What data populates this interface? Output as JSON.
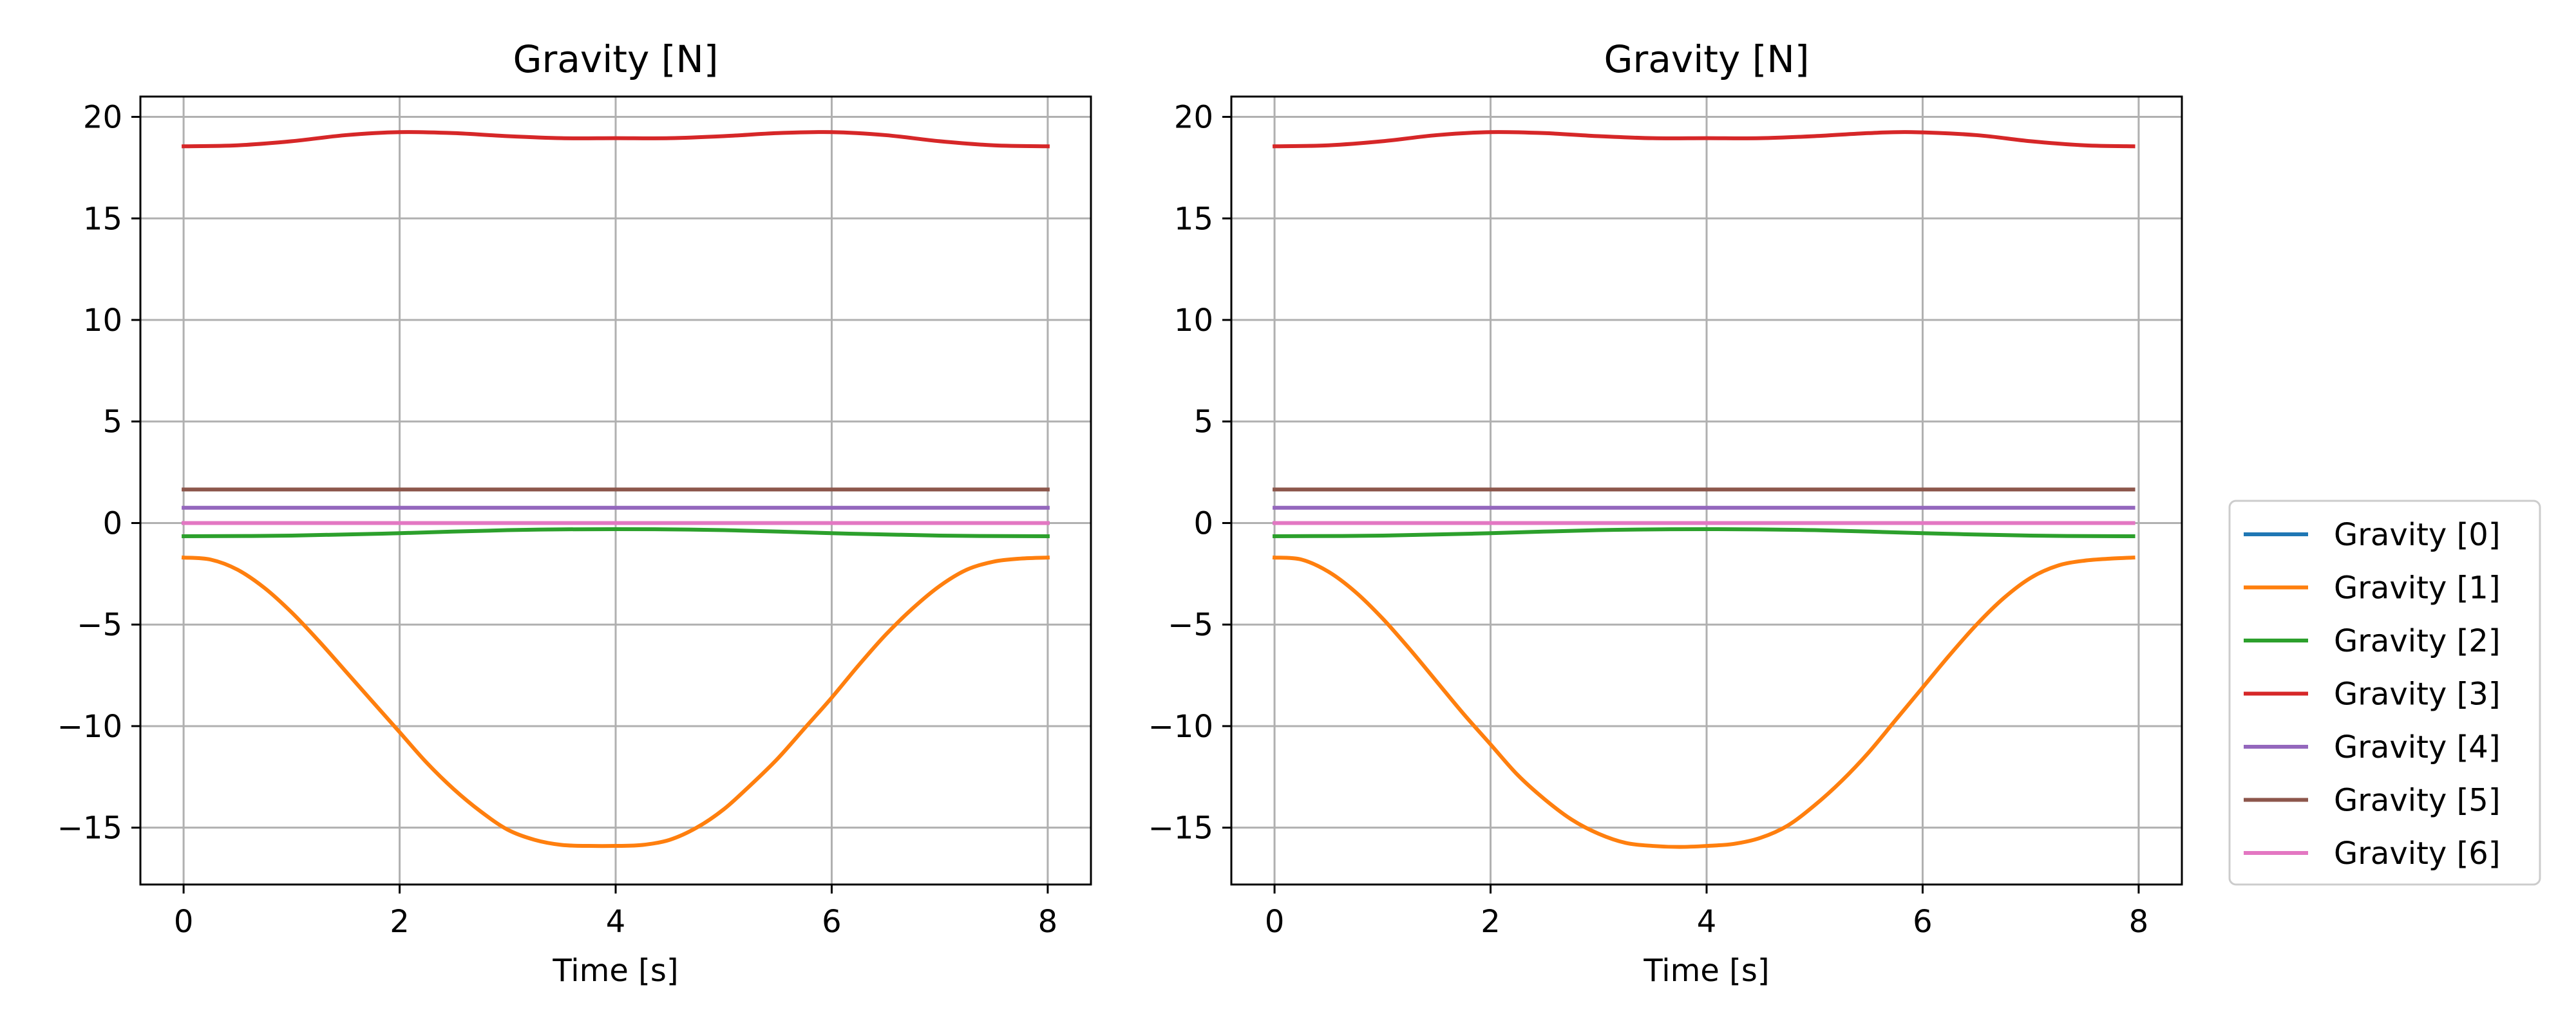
{
  "chart_data": [
    {
      "type": "line",
      "title": "Gravity [N]",
      "xlabel": "Time [s]",
      "ylabel": "",
      "xlim": [
        -0.4,
        8.4
      ],
      "ylim": [
        -17.8,
        21.0
      ],
      "xticks": [
        0,
        2,
        4,
        6,
        8
      ],
      "yticks": [
        -15,
        -10,
        -5,
        0,
        5,
        10,
        15,
        20
      ],
      "xtick_labels": [
        "0",
        "2",
        "4",
        "6",
        "8"
      ],
      "ytick_labels": [
        "−15",
        "−10",
        "−5",
        "0",
        "5",
        "10",
        "15",
        "20"
      ],
      "grid": true,
      "series": [
        {
          "name": "Gravity [0]",
          "color": "#1f77b4",
          "x": [
            0,
            8
          ],
          "y": [
            0.0,
            0.0
          ]
        },
        {
          "name": "Gravity [1]",
          "color": "#ff7f0e",
          "x": [
            0,
            0.25,
            0.5,
            0.75,
            1,
            1.25,
            1.5,
            1.75,
            2,
            2.25,
            2.5,
            2.75,
            3,
            3.25,
            3.5,
            3.75,
            4,
            4.25,
            4.5,
            4.75,
            5,
            5.25,
            5.5,
            5.75,
            6,
            6.25,
            6.5,
            6.75,
            7,
            7.25,
            7.5,
            7.75,
            8
          ],
          "y": [
            -1.7,
            -1.8,
            -2.3,
            -3.2,
            -4.4,
            -5.8,
            -7.3,
            -8.8,
            -10.3,
            -11.8,
            -13.1,
            -14.2,
            -15.1,
            -15.6,
            -15.85,
            -15.9,
            -15.9,
            -15.85,
            -15.6,
            -15.0,
            -14.1,
            -12.9,
            -11.6,
            -10.1,
            -8.6,
            -7.0,
            -5.5,
            -4.2,
            -3.1,
            -2.3,
            -1.9,
            -1.75,
            -1.7
          ]
        },
        {
          "name": "Gravity [2]",
          "color": "#2ca02c",
          "x": [
            0,
            1,
            2,
            3,
            4,
            5,
            6,
            7,
            8
          ],
          "y": [
            -0.65,
            -0.62,
            -0.5,
            -0.35,
            -0.3,
            -0.35,
            -0.5,
            -0.62,
            -0.65
          ]
        },
        {
          "name": "Gravity [3]",
          "color": "#d62728",
          "x": [
            0,
            0.5,
            1,
            1.5,
            2,
            2.5,
            3,
            3.5,
            4,
            4.5,
            5,
            5.5,
            6,
            6.5,
            7,
            7.5,
            8
          ],
          "y": [
            18.55,
            18.6,
            18.8,
            19.1,
            19.25,
            19.2,
            19.05,
            18.95,
            18.95,
            18.95,
            19.05,
            19.2,
            19.25,
            19.1,
            18.8,
            18.6,
            18.55
          ]
        },
        {
          "name": "Gravity [4]",
          "color": "#9467bd",
          "x": [
            0,
            8
          ],
          "y": [
            0.75,
            0.75
          ]
        },
        {
          "name": "Gravity [5]",
          "color": "#8c564b",
          "x": [
            0,
            8
          ],
          "y": [
            1.65,
            1.65
          ]
        },
        {
          "name": "Gravity [6]",
          "color": "#e377c2",
          "x": [
            0,
            8
          ],
          "y": [
            0.0,
            0.0
          ]
        }
      ]
    },
    {
      "type": "line",
      "title": "Gravity [N]",
      "xlabel": "Time [s]",
      "ylabel": "",
      "xlim": [
        -0.4,
        8.4
      ],
      "ylim": [
        -17.8,
        21.0
      ],
      "xticks": [
        0,
        2,
        4,
        6,
        8
      ],
      "yticks": [
        -15,
        -10,
        -5,
        0,
        5,
        10,
        15,
        20
      ],
      "xtick_labels": [
        "0",
        "2",
        "4",
        "6",
        "8"
      ],
      "ytick_labels": [
        "−15",
        "−10",
        "−5",
        "0",
        "5",
        "10",
        "15",
        "20"
      ],
      "grid": true,
      "legend": "right-outside",
      "series": [
        {
          "name": "Gravity [0]",
          "color": "#1f77b4",
          "x": [
            0,
            7.95
          ],
          "y": [
            0.0,
            0.0
          ]
        },
        {
          "name": "Gravity [1]",
          "color": "#ff7f0e",
          "x": [
            0,
            0.25,
            0.5,
            0.75,
            1,
            1.25,
            1.5,
            1.75,
            2,
            2.25,
            2.5,
            2.75,
            3,
            3.25,
            3.5,
            3.75,
            4,
            4.25,
            4.5,
            4.75,
            5,
            5.25,
            5.5,
            5.75,
            6,
            6.25,
            6.5,
            6.75,
            7,
            7.25,
            7.5,
            7.75,
            7.95
          ],
          "y": [
            -1.7,
            -1.8,
            -2.4,
            -3.4,
            -4.7,
            -6.2,
            -7.8,
            -9.4,
            -10.9,
            -12.4,
            -13.6,
            -14.6,
            -15.3,
            -15.75,
            -15.9,
            -15.95,
            -15.9,
            -15.8,
            -15.5,
            -14.9,
            -13.9,
            -12.7,
            -11.3,
            -9.7,
            -8.1,
            -6.5,
            -5.0,
            -3.7,
            -2.7,
            -2.1,
            -1.85,
            -1.75,
            -1.7
          ]
        },
        {
          "name": "Gravity [2]",
          "color": "#2ca02c",
          "x": [
            0,
            1,
            2,
            3,
            4,
            5,
            6,
            7,
            7.95
          ],
          "y": [
            -0.65,
            -0.62,
            -0.5,
            -0.35,
            -0.3,
            -0.35,
            -0.5,
            -0.62,
            -0.65
          ]
        },
        {
          "name": "Gravity [3]",
          "color": "#d62728",
          "x": [
            0,
            0.5,
            1,
            1.5,
            2,
            2.5,
            3,
            3.5,
            4,
            4.5,
            5,
            5.5,
            5.9,
            6.5,
            7,
            7.5,
            7.95
          ],
          "y": [
            18.55,
            18.6,
            18.8,
            19.1,
            19.25,
            19.2,
            19.05,
            18.95,
            18.95,
            18.95,
            19.05,
            19.2,
            19.25,
            19.1,
            18.8,
            18.6,
            18.55
          ]
        },
        {
          "name": "Gravity [4]",
          "color": "#9467bd",
          "x": [
            0,
            7.95
          ],
          "y": [
            0.75,
            0.75
          ]
        },
        {
          "name": "Gravity [5]",
          "color": "#8c564b",
          "x": [
            0,
            7.95
          ],
          "y": [
            1.65,
            1.65
          ]
        },
        {
          "name": "Gravity [6]",
          "color": "#e377c2",
          "x": [
            0,
            7.95
          ],
          "y": [
            0.0,
            0.0
          ]
        }
      ]
    }
  ],
  "legend": {
    "entries": [
      {
        "label": "Gravity [0]",
        "color": "#1f77b4"
      },
      {
        "label": "Gravity [1]",
        "color": "#ff7f0e"
      },
      {
        "label": "Gravity [2]",
        "color": "#2ca02c"
      },
      {
        "label": "Gravity [3]",
        "color": "#d62728"
      },
      {
        "label": "Gravity [4]",
        "color": "#9467bd"
      },
      {
        "label": "Gravity [5]",
        "color": "#8c564b"
      },
      {
        "label": "Gravity [6]",
        "color": "#e377c2"
      }
    ]
  }
}
